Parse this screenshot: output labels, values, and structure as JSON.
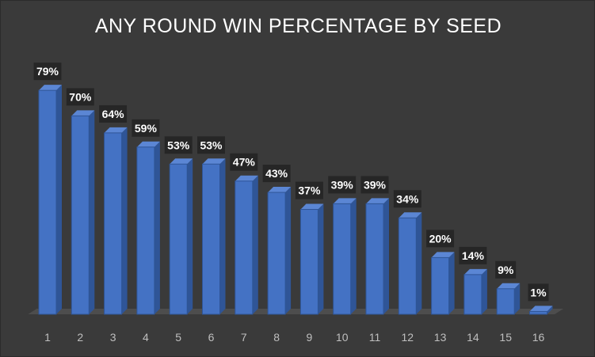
{
  "chart_data": {
    "type": "bar",
    "title": "ANY ROUND WIN PERCENTAGE BY SEED",
    "xlabel": "",
    "ylabel": "",
    "categories": [
      "1",
      "2",
      "3",
      "4",
      "5",
      "6",
      "7",
      "8",
      "9",
      "10",
      "11",
      "12",
      "13",
      "14",
      "15",
      "16"
    ],
    "values": [
      79,
      70,
      64,
      59,
      53,
      53,
      47,
      43,
      37,
      39,
      39,
      34,
      20,
      14,
      9,
      1
    ],
    "data_labels": [
      "79%",
      "70%",
      "64%",
      "59%",
      "53%",
      "53%",
      "47%",
      "43%",
      "37%",
      "39%",
      "39%",
      "34%",
      "20%",
      "14%",
      "9%",
      "1%"
    ],
    "ylim": [
      0,
      100
    ],
    "grid": false,
    "legend": "none",
    "style": "3d-column",
    "colors": {
      "background": "#3a3a3a",
      "bar_front": "#4472c4",
      "bar_side": "#2f5597",
      "bar_top": "#5b86d4",
      "label_box": "#262626",
      "floor": "#4d4d4d"
    }
  }
}
